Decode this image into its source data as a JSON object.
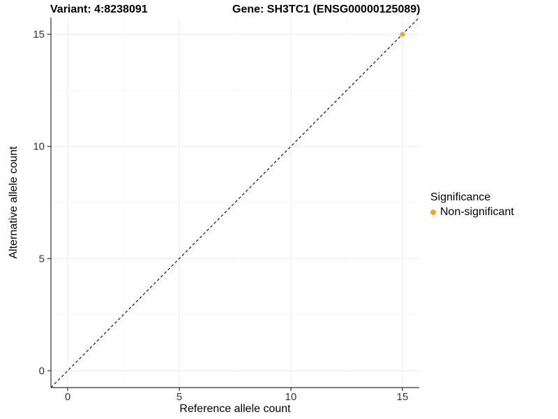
{
  "header": {
    "title_left": "Variant: 4:8238091",
    "title_right": "Gene: SH3TC1 (ENSG00000125089)"
  },
  "chart_data": {
    "type": "scatter",
    "title_left": "Variant: 4:8238091",
    "title_right": "Gene: SH3TC1 (ENSG00000125089)",
    "xlabel": "Reference allele count",
    "ylabel": "Alternative allele count",
    "xlim": [
      -0.75,
      15.75
    ],
    "ylim": [
      -0.75,
      15.75
    ],
    "xticks": [
      0,
      5,
      10,
      15
    ],
    "yticks": [
      0,
      5,
      10,
      15
    ],
    "xminor": [
      2.5,
      7.5,
      12.5
    ],
    "yminor": [
      2.5,
      7.5,
      12.5
    ],
    "grid": "major+minor",
    "reference_line": {
      "type": "identity y=x",
      "style": "dashed",
      "color": "#000000"
    },
    "series": [
      {
        "name": "Non-significant",
        "color": "#F9A22B",
        "points": [
          [
            15,
            15
          ]
        ],
        "marker_radius": 3.5
      }
    ],
    "legend": {
      "position": "right",
      "title": "Significance",
      "entries": [
        {
          "label": "Non-significant",
          "color": "#F9A22B"
        }
      ]
    }
  },
  "colors": {
    "point_orange": "#F9A22B",
    "axis_line": "#333333",
    "tick_text": "#333333",
    "grid_major": "#EBEBEB",
    "grid_minor": "#F5F5F5",
    "dashed_line": "#000000",
    "background": "#FFFFFF"
  }
}
